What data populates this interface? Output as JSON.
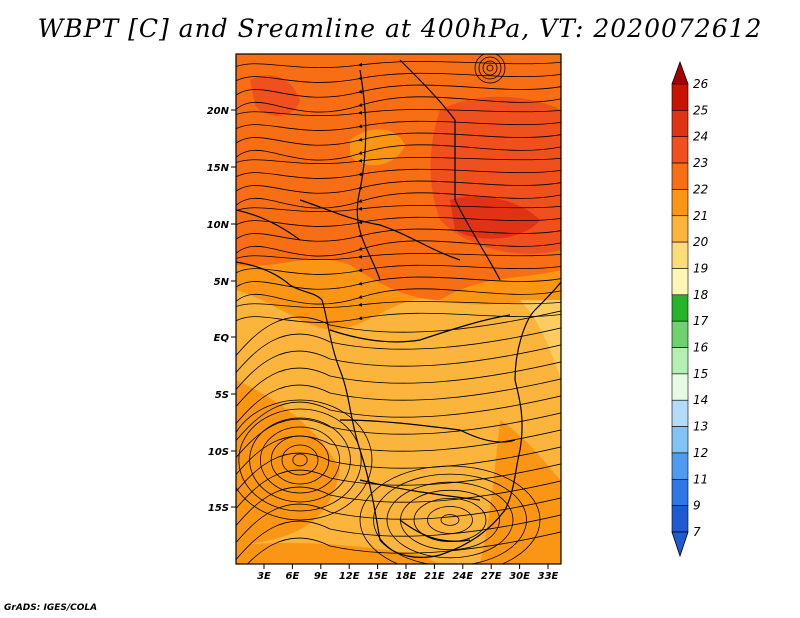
{
  "title": "WBPT [C] and Sreamline at 400hPa, VT: 2020072612",
  "footer": "GrADS: IGES/COLA",
  "map": {
    "lat_ticks": [
      "20N",
      "15N",
      "10N",
      "5N",
      "EQ",
      "5S",
      "10S",
      "15S"
    ],
    "lon_ticks": [
      "3E",
      "6E",
      "9E",
      "12E",
      "15E",
      "18E",
      "21E",
      "24E",
      "27E",
      "30E",
      "33E"
    ]
  },
  "colorbar": {
    "labels": [
      "26",
      "25",
      "24",
      "23",
      "22",
      "21",
      "20",
      "19",
      "18",
      "17",
      "16",
      "15",
      "14",
      "13",
      "12",
      "11",
      "9",
      "7"
    ],
    "colors": [
      "#a50000",
      "#c81400",
      "#e03214",
      "#f0501e",
      "#f76e14",
      "#fa9614",
      "#fbb43c",
      "#fddc78",
      "#fff5b4",
      "#28b428",
      "#6ed26e",
      "#b4f0b4",
      "#e6fae6",
      "#b4dcfa",
      "#82c3f5",
      "#509bf0",
      "#2d78e6",
      "#1e5ad2"
    ]
  }
}
